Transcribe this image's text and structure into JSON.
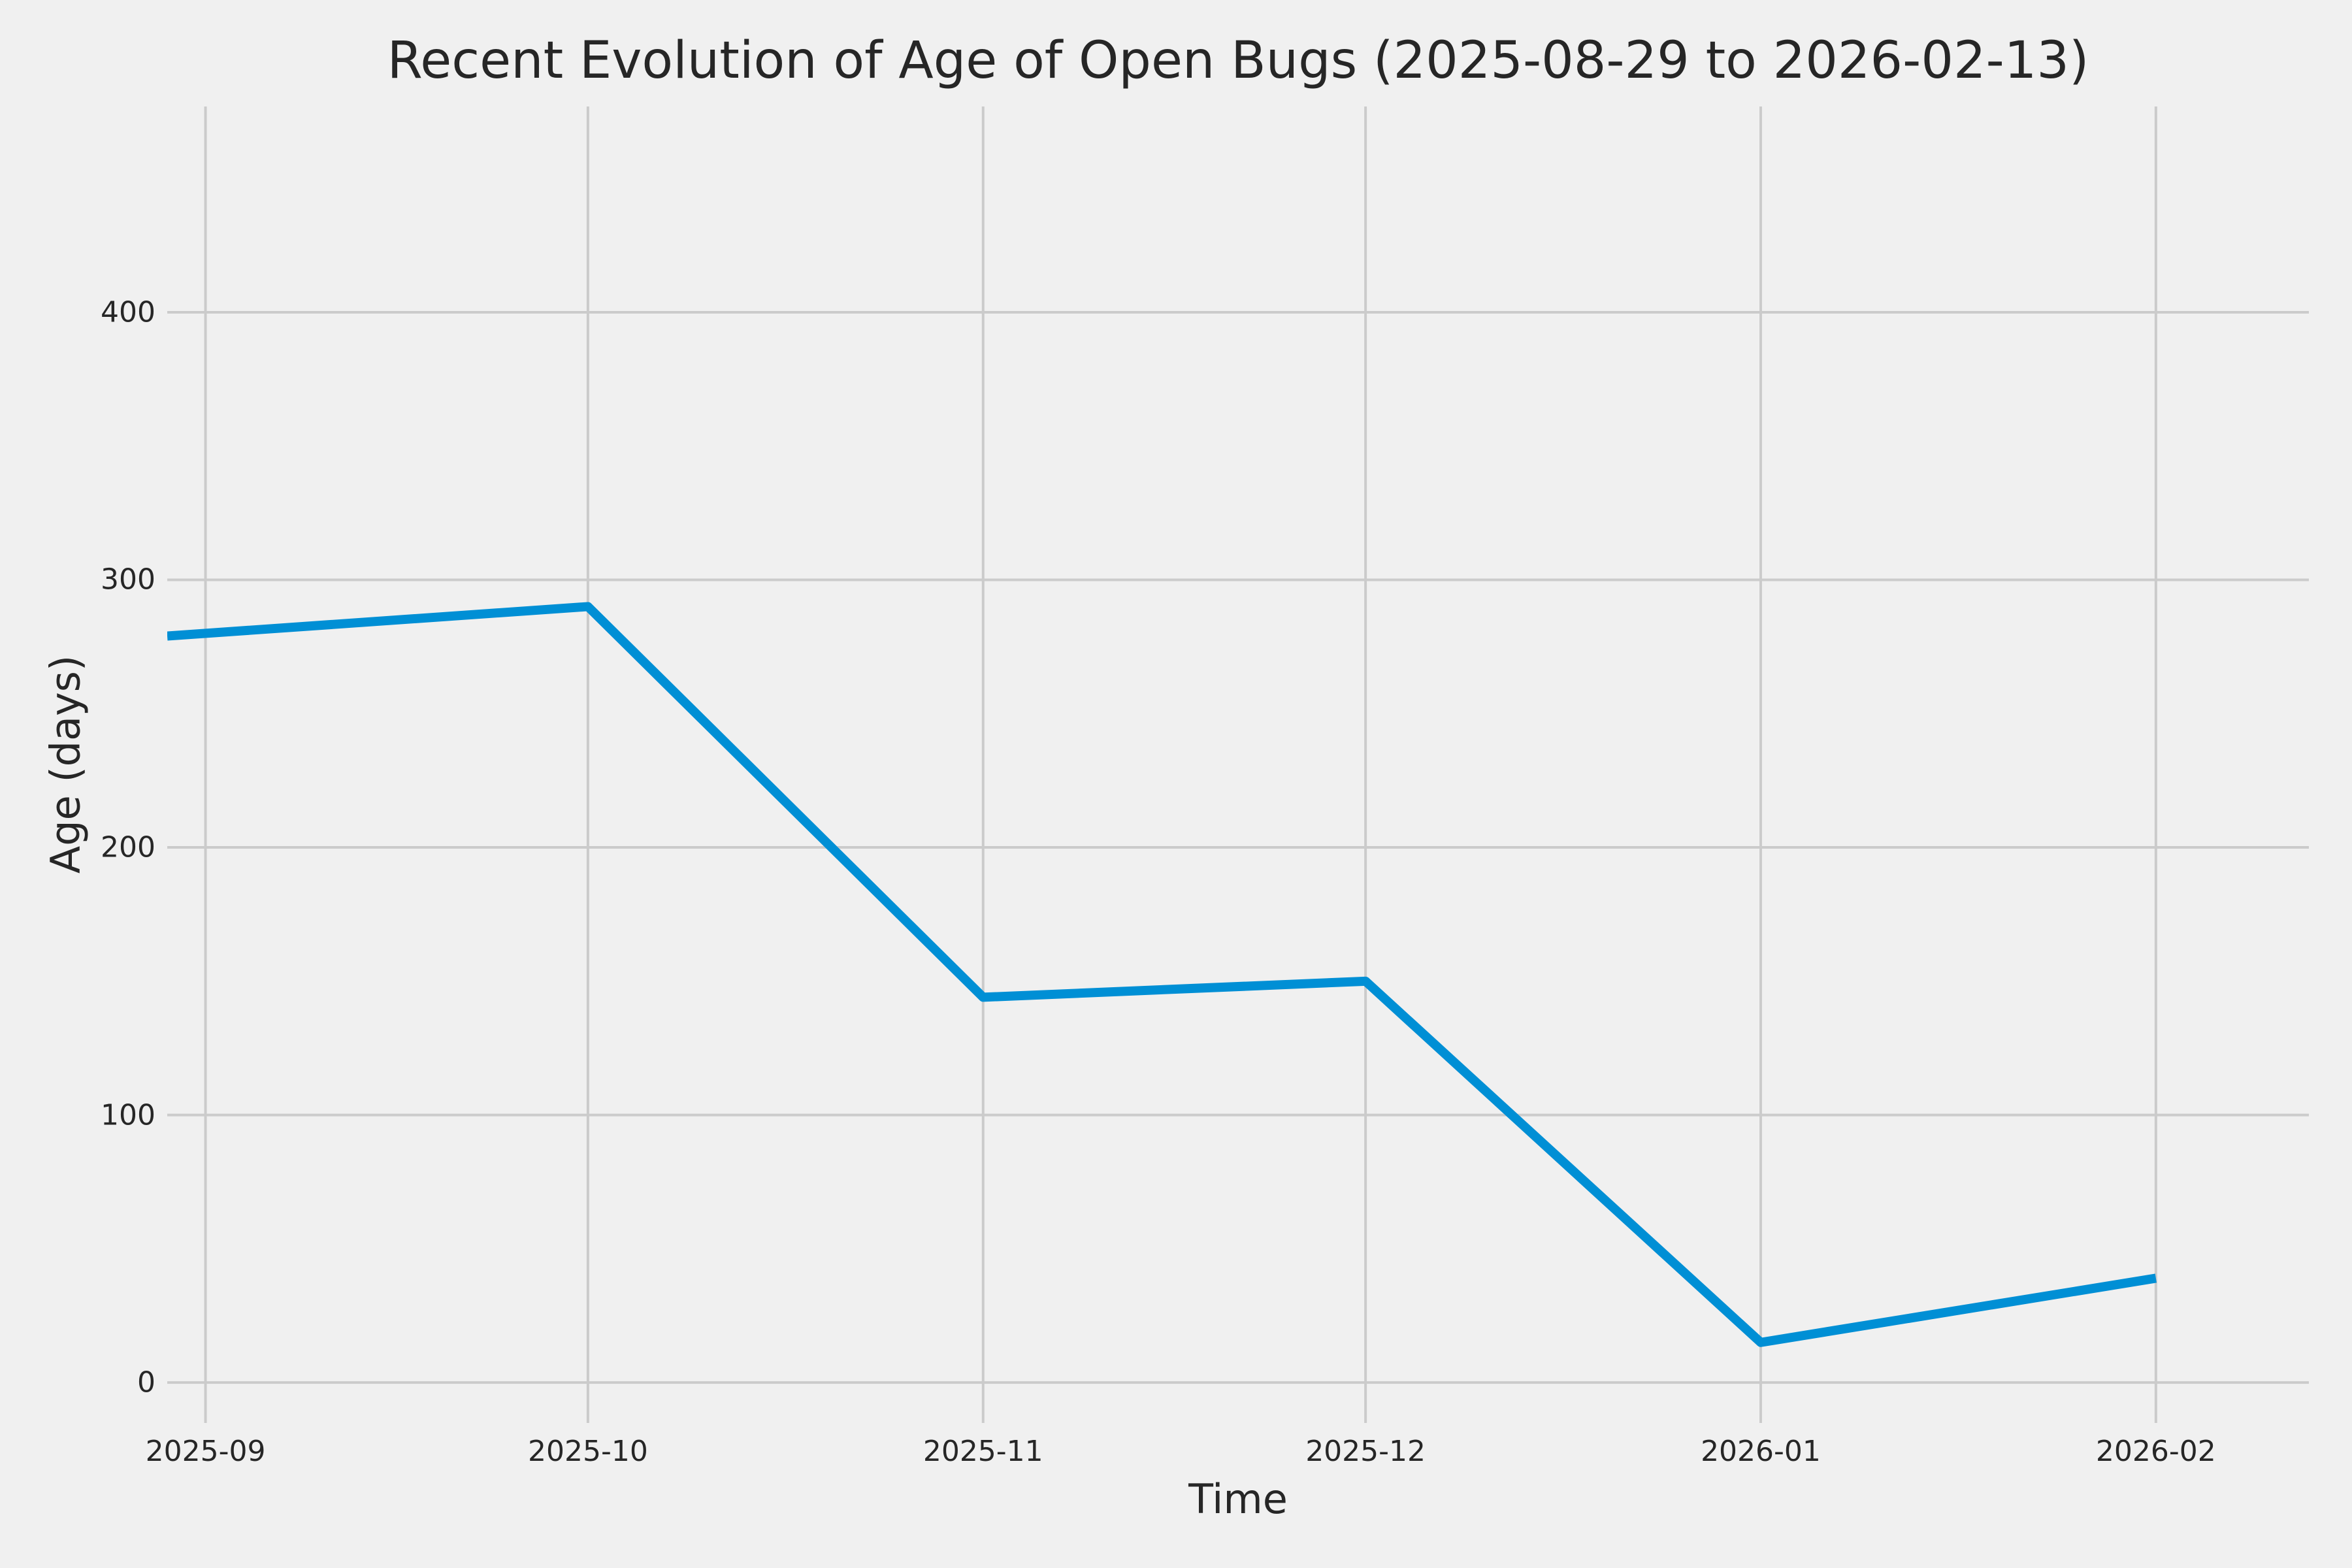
{
  "chart_data": {
    "type": "line",
    "title": "Recent Evolution of Age of Open Bugs (2025-08-29 to 2026-02-13)",
    "xlabel": "Time",
    "ylabel": "Age (days)",
    "x": [
      "2025-08-29",
      "2025-10-01",
      "2025-11-01",
      "2025-12-01",
      "2026-01-01",
      "2026-02-01"
    ],
    "values": [
      279,
      290,
      144,
      150,
      15,
      39
    ],
    "xlim": [
      "2025-08-29",
      "2026-02-13"
    ],
    "ylim": [
      -15.1,
      476.9
    ],
    "x_tick_labels": [
      "2025-09",
      "2025-10",
      "2025-11",
      "2025-12",
      "2026-01",
      "2026-02"
    ],
    "x_tick_dates": [
      "2025-09-01",
      "2025-10-01",
      "2025-11-01",
      "2025-12-01",
      "2026-01-01",
      "2026-02-01"
    ],
    "y_ticks": [
      0,
      100,
      200,
      300,
      400
    ],
    "grid": true,
    "legend": false,
    "colors": {
      "line": "#008fd5",
      "grid": "#cbcbcb",
      "background": "#f0f0f0",
      "text": "#262626"
    }
  }
}
